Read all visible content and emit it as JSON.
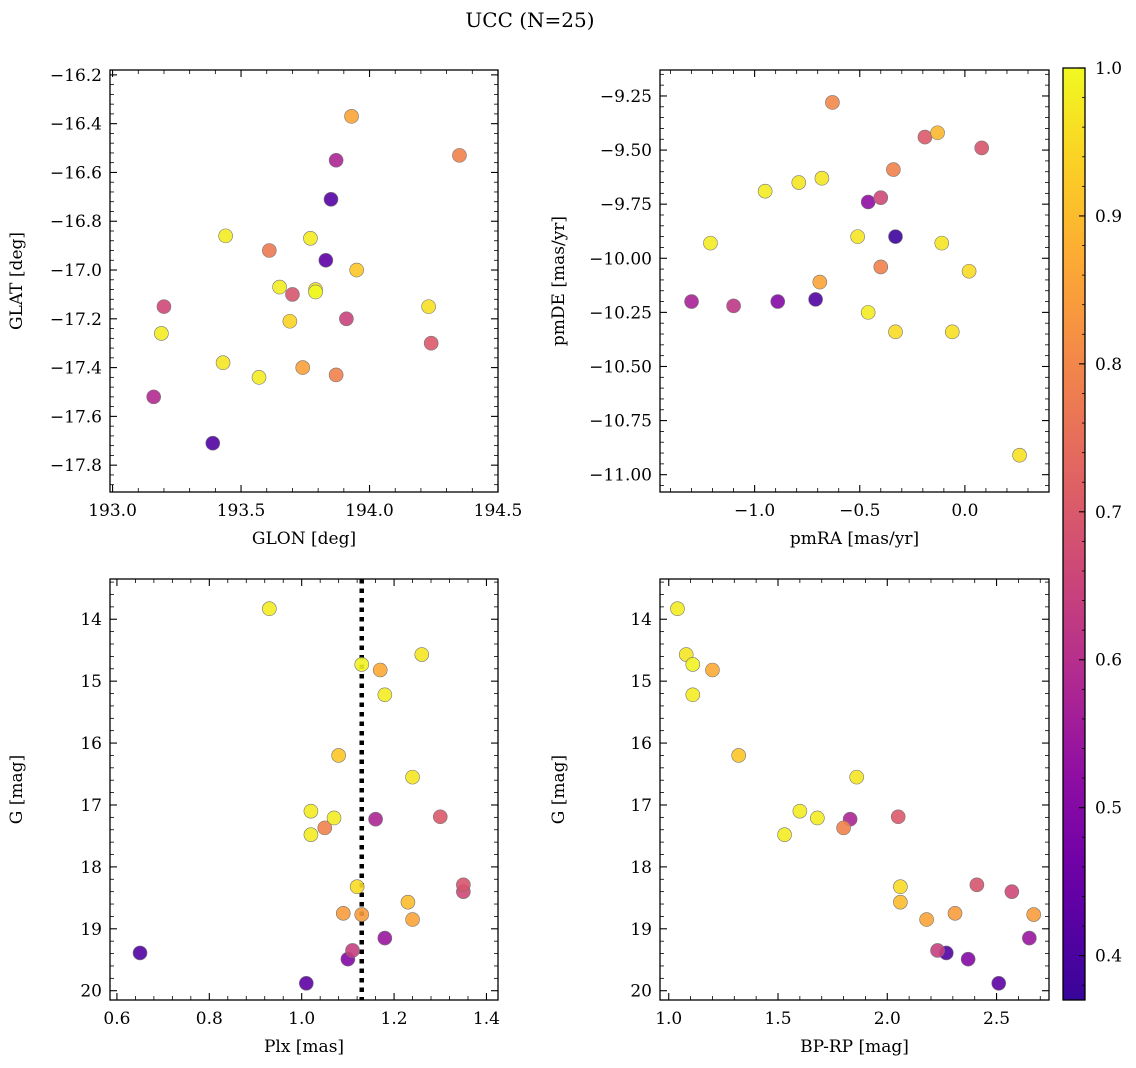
{
  "title": "UCC (N=25)",
  "colorbar": {
    "vmin": 0.37,
    "vmax": 1.0,
    "ticks": [
      0.4,
      0.5,
      0.6,
      0.7,
      0.8,
      0.9,
      1.0
    ],
    "tick_labels": [
      "0.4",
      "0.5",
      "0.6",
      "0.7",
      "0.8",
      "0.9",
      "1.0"
    ],
    "colormap": "plasma"
  },
  "chart_data": [
    {
      "type": "scatter",
      "xlabel": "GLON [deg]",
      "ylabel": "GLAT [deg]",
      "xlim": [
        192.99,
        194.5
      ],
      "ylim": [
        -17.91,
        -16.18
      ],
      "xticks": [
        193.0,
        193.5,
        194.0,
        194.5
      ],
      "xtick_labels": [
        "193.0",
        "193.5",
        "194.0",
        "194.5"
      ],
      "yticks": [
        -17.8,
        -17.6,
        -17.4,
        -17.2,
        -17.0,
        -16.8,
        -16.6,
        -16.4,
        -16.2
      ],
      "ytick_labels": [
        "−17.8",
        "−17.6",
        "−17.4",
        "−17.2",
        "−17.0",
        "−16.8",
        "−16.6",
        "−16.4",
        "−16.2"
      ],
      "points": [
        {
          "x": 193.93,
          "y": -16.37,
          "c": 0.86
        },
        {
          "x": 194.35,
          "y": -16.53,
          "c": 0.79
        },
        {
          "x": 193.87,
          "y": -16.55,
          "c": 0.58
        },
        {
          "x": 193.85,
          "y": -16.71,
          "c": 0.42
        },
        {
          "x": 193.44,
          "y": -16.86,
          "c": 0.98
        },
        {
          "x": 193.61,
          "y": -16.92,
          "c": 0.77
        },
        {
          "x": 193.77,
          "y": -16.87,
          "c": 0.98
        },
        {
          "x": 193.83,
          "y": -16.96,
          "c": 0.43
        },
        {
          "x": 193.95,
          "y": -17.0,
          "c": 0.92
        },
        {
          "x": 193.65,
          "y": -17.07,
          "c": 0.98
        },
        {
          "x": 193.7,
          "y": -17.1,
          "c": 0.69
        },
        {
          "x": 193.79,
          "y": -17.09,
          "c": 1.0
        },
        {
          "x": 193.2,
          "y": -17.15,
          "c": 0.66
        },
        {
          "x": 194.23,
          "y": -17.15,
          "c": 0.96
        },
        {
          "x": 193.19,
          "y": -17.26,
          "c": 0.98
        },
        {
          "x": 193.69,
          "y": -17.21,
          "c": 0.94
        },
        {
          "x": 193.91,
          "y": -17.2,
          "c": 0.65
        },
        {
          "x": 194.24,
          "y": -17.3,
          "c": 0.7
        },
        {
          "x": 193.43,
          "y": -17.38,
          "c": 0.97
        },
        {
          "x": 193.57,
          "y": -17.44,
          "c": 0.98
        },
        {
          "x": 193.74,
          "y": -17.4,
          "c": 0.85
        },
        {
          "x": 193.87,
          "y": -17.43,
          "c": 0.79
        },
        {
          "x": 193.16,
          "y": -17.52,
          "c": 0.59
        },
        {
          "x": 193.39,
          "y": -17.71,
          "c": 0.41
        },
        {
          "x": 193.79,
          "y": -17.08,
          "c": 0.97
        }
      ]
    },
    {
      "type": "scatter",
      "xlabel": "pmRA [mas/yr]",
      "ylabel": "pmDE [mas/yr]",
      "xlim": [
        -1.45,
        0.4
      ],
      "ylim": [
        -11.08,
        -9.13
      ],
      "xticks": [
        -1.0,
        -0.5,
        0.0
      ],
      "xtick_labels": [
        "−1.0",
        "−0.5",
        "0.0"
      ],
      "yticks": [
        -11.0,
        -10.75,
        -10.5,
        -10.25,
        -10.0,
        -9.75,
        -9.5,
        -9.25
      ],
      "ytick_labels": [
        "−11.00",
        "−10.75",
        "−10.50",
        "−10.25",
        "−10.00",
        "−9.75",
        "−9.50",
        "−9.25"
      ],
      "points": [
        {
          "x": -0.63,
          "y": -9.28,
          "c": 0.8
        },
        {
          "x": -0.13,
          "y": -9.42,
          "c": 0.89
        },
        {
          "x": -0.19,
          "y": -9.44,
          "c": 0.7
        },
        {
          "x": 0.08,
          "y": -9.49,
          "c": 0.69
        },
        {
          "x": -0.34,
          "y": -9.59,
          "c": 0.79
        },
        {
          "x": -0.68,
          "y": -9.63,
          "c": 0.97
        },
        {
          "x": -0.79,
          "y": -9.65,
          "c": 0.97
        },
        {
          "x": -0.95,
          "y": -9.69,
          "c": 0.98
        },
        {
          "x": -0.4,
          "y": -9.72,
          "c": 0.66
        },
        {
          "x": -0.46,
          "y": -9.74,
          "c": 0.52
        },
        {
          "x": -0.51,
          "y": -9.9,
          "c": 0.97
        },
        {
          "x": -0.33,
          "y": -9.9,
          "c": 0.38
        },
        {
          "x": -1.21,
          "y": -9.93,
          "c": 0.98
        },
        {
          "x": -0.11,
          "y": -9.93,
          "c": 0.97
        },
        {
          "x": -0.4,
          "y": -10.04,
          "c": 0.79
        },
        {
          "x": 0.02,
          "y": -10.06,
          "c": 0.95
        },
        {
          "x": -0.69,
          "y": -10.11,
          "c": 0.86
        },
        {
          "x": -0.71,
          "y": -10.19,
          "c": 0.41
        },
        {
          "x": -1.3,
          "y": -10.2,
          "c": 0.57
        },
        {
          "x": -0.89,
          "y": -10.2,
          "c": 0.5
        },
        {
          "x": -1.1,
          "y": -10.22,
          "c": 0.62
        },
        {
          "x": -0.46,
          "y": -10.25,
          "c": 0.98
        },
        {
          "x": -0.33,
          "y": -10.34,
          "c": 0.95
        },
        {
          "x": -0.06,
          "y": -10.34,
          "c": 0.96
        },
        {
          "x": 0.26,
          "y": -10.91,
          "c": 0.96
        }
      ]
    },
    {
      "type": "scatter",
      "xlabel": "Plx [mas]",
      "ylabel": "G [mag]",
      "xlim": [
        0.585,
        1.425
      ],
      "ylim": [
        20.15,
        13.35
      ],
      "xticks": [
        0.6,
        0.8,
        1.0,
        1.2,
        1.4
      ],
      "xtick_labels": [
        "0.6",
        "0.8",
        "1.0",
        "1.2",
        "1.4"
      ],
      "yticks": [
        14,
        15,
        16,
        17,
        18,
        19,
        20
      ],
      "ytick_labels": [
        "14",
        "15",
        "16",
        "17",
        "18",
        "19",
        "20"
      ],
      "vline": 1.13,
      "points": [
        {
          "x": 0.93,
          "y": 13.83,
          "c": 0.98
        },
        {
          "x": 1.26,
          "y": 14.57,
          "c": 0.97
        },
        {
          "x": 1.13,
          "y": 14.73,
          "c": 0.99
        },
        {
          "x": 1.17,
          "y": 14.82,
          "c": 0.87
        },
        {
          "x": 1.18,
          "y": 15.22,
          "c": 0.98
        },
        {
          "x": 1.08,
          "y": 16.2,
          "c": 0.92
        },
        {
          "x": 1.24,
          "y": 16.55,
          "c": 0.97
        },
        {
          "x": 1.02,
          "y": 17.1,
          "c": 0.98
        },
        {
          "x": 1.07,
          "y": 17.21,
          "c": 0.98
        },
        {
          "x": 1.16,
          "y": 17.23,
          "c": 0.58
        },
        {
          "x": 1.3,
          "y": 17.19,
          "c": 0.7
        },
        {
          "x": 1.05,
          "y": 17.37,
          "c": 0.79
        },
        {
          "x": 1.02,
          "y": 17.48,
          "c": 0.98
        },
        {
          "x": 1.35,
          "y": 18.29,
          "c": 0.69
        },
        {
          "x": 1.12,
          "y": 18.32,
          "c": 0.95
        },
        {
          "x": 1.35,
          "y": 18.4,
          "c": 0.66
        },
        {
          "x": 1.23,
          "y": 18.57,
          "c": 0.9
        },
        {
          "x": 1.09,
          "y": 18.75,
          "c": 0.84
        },
        {
          "x": 1.13,
          "y": 18.77,
          "c": 0.84
        },
        {
          "x": 1.24,
          "y": 18.85,
          "c": 0.86
        },
        {
          "x": 1.18,
          "y": 19.15,
          "c": 0.54
        },
        {
          "x": 1.11,
          "y": 19.35,
          "c": 0.64
        },
        {
          "x": 0.65,
          "y": 19.39,
          "c": 0.41
        },
        {
          "x": 1.1,
          "y": 19.49,
          "c": 0.5
        },
        {
          "x": 1.01,
          "y": 19.88,
          "c": 0.43
        }
      ]
    },
    {
      "type": "scatter",
      "xlabel": "BP-RP [mag]",
      "ylabel": "G [mag]",
      "xlim": [
        0.96,
        2.74
      ],
      "ylim": [
        20.15,
        13.35
      ],
      "xticks": [
        1.0,
        1.5,
        2.0,
        2.5
      ],
      "xtick_labels": [
        "1.0",
        "1.5",
        "2.0",
        "2.5"
      ],
      "yticks": [
        14,
        15,
        16,
        17,
        18,
        19,
        20
      ],
      "ytick_labels": [
        "14",
        "15",
        "16",
        "17",
        "18",
        "19",
        "20"
      ],
      "points": [
        {
          "x": 1.04,
          "y": 13.83,
          "c": 0.98
        },
        {
          "x": 1.08,
          "y": 14.57,
          "c": 0.97
        },
        {
          "x": 1.11,
          "y": 14.73,
          "c": 0.99
        },
        {
          "x": 1.2,
          "y": 14.82,
          "c": 0.87
        },
        {
          "x": 1.11,
          "y": 15.22,
          "c": 0.98
        },
        {
          "x": 1.32,
          "y": 16.2,
          "c": 0.92
        },
        {
          "x": 1.86,
          "y": 16.55,
          "c": 0.97
        },
        {
          "x": 1.6,
          "y": 17.1,
          "c": 0.98
        },
        {
          "x": 1.68,
          "y": 17.21,
          "c": 0.98
        },
        {
          "x": 1.83,
          "y": 17.23,
          "c": 0.58
        },
        {
          "x": 2.05,
          "y": 17.19,
          "c": 0.7
        },
        {
          "x": 1.8,
          "y": 17.37,
          "c": 0.79
        },
        {
          "x": 1.53,
          "y": 17.48,
          "c": 0.98
        },
        {
          "x": 2.41,
          "y": 18.29,
          "c": 0.69
        },
        {
          "x": 2.06,
          "y": 18.32,
          "c": 0.95
        },
        {
          "x": 2.57,
          "y": 18.4,
          "c": 0.66
        },
        {
          "x": 2.06,
          "y": 18.57,
          "c": 0.9
        },
        {
          "x": 2.31,
          "y": 18.75,
          "c": 0.84
        },
        {
          "x": 2.67,
          "y": 18.77,
          "c": 0.84
        },
        {
          "x": 2.18,
          "y": 18.85,
          "c": 0.86
        },
        {
          "x": 2.65,
          "y": 19.15,
          "c": 0.54
        },
        {
          "x": 2.23,
          "y": 19.35,
          "c": 0.64
        },
        {
          "x": 2.27,
          "y": 19.39,
          "c": 0.41
        },
        {
          "x": 2.37,
          "y": 19.49,
          "c": 0.5
        },
        {
          "x": 2.51,
          "y": 19.88,
          "c": 0.43
        }
      ]
    }
  ]
}
